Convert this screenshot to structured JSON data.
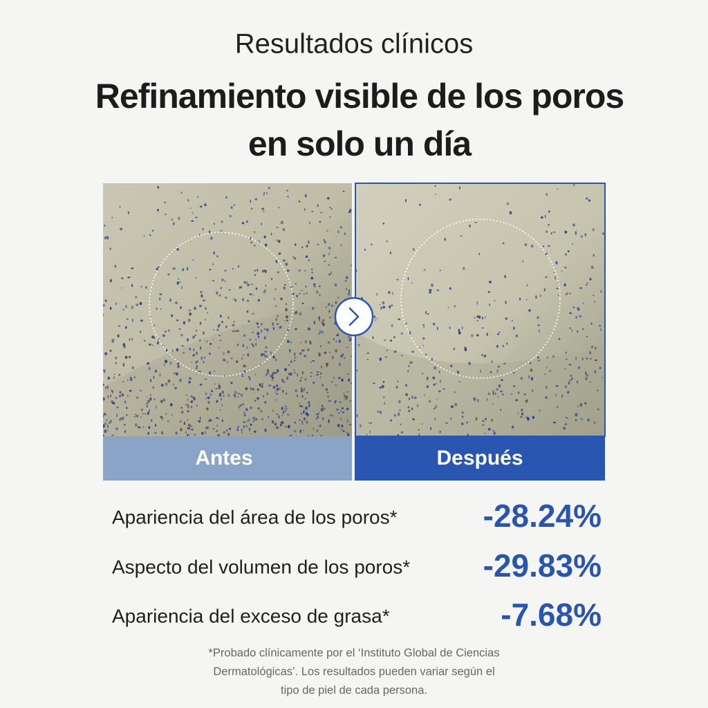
{
  "header": {
    "eyebrow": "Resultados clínicos",
    "title": [
      "Refinamiento visible de los poros",
      "en solo un día"
    ]
  },
  "comparison": {
    "before": "Antes",
    "after": "Después"
  },
  "stats": [
    {
      "label": "Apariencia del área de los poros*",
      "value": "-28.24%"
    },
    {
      "label": "Aspecto del volumen de los poros*",
      "value": "-29.83%"
    },
    {
      "label": "Apariencia del exceso de grasa*",
      "value": "-7.68%"
    }
  ],
  "footnote": [
    "*Probado clínicamente por el ‘Instituto Global de Ciencias",
    "Dermatológicas’. Los resultados pueden variar según el",
    "tipo de piel de cada persona."
  ]
}
